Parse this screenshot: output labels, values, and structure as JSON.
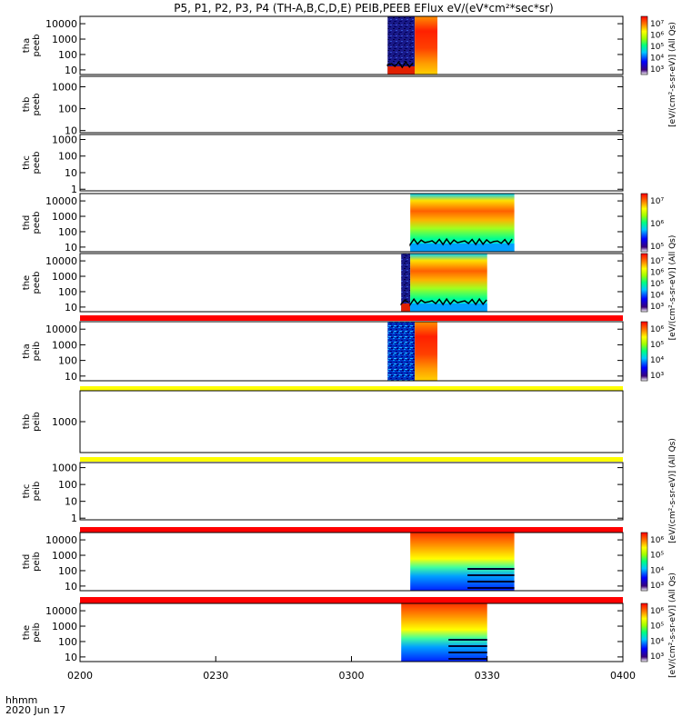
{
  "chart_data": {
    "type": "heatmap",
    "title": "P5, P1, P2, P3, P4 (TH-A,B,C,D,E) PEIB,PEEB EFlux eV/(eV*cm²*sec*sr)",
    "x_label_top": "hhmm",
    "x_label_bottom": "2020 Jun 17",
    "x_ticks": [
      "0200",
      "0230",
      "0300",
      "0330",
      "0400"
    ],
    "x_range_minutes": [
      0,
      120
    ],
    "panels": [
      {
        "id": "tha_peeb",
        "label": [
          "tha",
          "peeb"
        ],
        "yticks": [
          "10000",
          "1000",
          "100",
          "10"
        ],
        "ylim": [
          5,
          30000
        ],
        "blocks": [
          {
            "t0": 68,
            "t1": 74,
            "style": "dark"
          },
          {
            "t0": 74,
            "t1": 79,
            "style": "hot"
          }
        ],
        "colorbar": {
          "ticks": [
            "10⁷",
            "10⁶",
            "10⁵",
            "10⁴",
            "10³"
          ]
        }
      },
      {
        "id": "thb_peeb",
        "label": [
          "thb",
          "peeb"
        ],
        "yticks": [
          "1000",
          "100",
          "10"
        ],
        "ylim": [
          8,
          3000
        ],
        "blocks": []
      },
      {
        "id": "thc_peeb",
        "label": [
          "thc",
          "peeb"
        ],
        "yticks": [
          "1000",
          "100",
          "10",
          "1"
        ],
        "ylim": [
          0.8,
          2000
        ],
        "blocks": []
      },
      {
        "id": "thd_peeb",
        "label": [
          "thd",
          "peeb"
        ],
        "yticks": [
          "10000",
          "1000",
          "100",
          "10"
        ],
        "ylim": [
          5,
          30000
        ],
        "blocks": [
          {
            "t0": 73,
            "t1": 96,
            "style": "band"
          }
        ],
        "colorbar": {
          "ticks": [
            "10⁷",
            "10⁶",
            "10⁵"
          ]
        }
      },
      {
        "id": "the_peeb",
        "label": [
          "the",
          "peeb"
        ],
        "yticks": [
          "10000",
          "1000",
          "100",
          "10"
        ],
        "ylim": [
          5,
          30000
        ],
        "blocks": [
          {
            "t0": 71,
            "t1": 73,
            "style": "dark"
          },
          {
            "t0": 73,
            "t1": 90,
            "style": "band"
          }
        ],
        "colorbar": {
          "ticks": [
            "10⁷",
            "10⁶",
            "10⁵",
            "10⁴",
            "10³"
          ]
        }
      },
      {
        "id": "tha_peib",
        "label": [
          "tha",
          "peib"
        ],
        "yticks": [
          "10000",
          "1000",
          "100",
          "10"
        ],
        "ylim": [
          5,
          30000
        ],
        "blocks": [
          {
            "t0": 68,
            "t1": 74,
            "style": "speckle"
          },
          {
            "t0": 74,
            "t1": 79,
            "style": "hot"
          }
        ],
        "colorbar": {
          "ticks": [
            "10⁶",
            "10⁵",
            "10⁴",
            "10³"
          ]
        }
      },
      {
        "id": "thb_peib",
        "label": [
          "thb",
          "peib"
        ],
        "yticks": [
          "1000"
        ],
        "ylim": [
          100,
          10000
        ],
        "blocks": []
      },
      {
        "id": "thc_peib",
        "label": [
          "thc",
          "peib"
        ],
        "yticks": [
          "1000",
          "100",
          "10",
          "1"
        ],
        "ylim": [
          0.8,
          2000
        ],
        "blocks": []
      },
      {
        "id": "thd_peib",
        "label": [
          "thd",
          "peib"
        ],
        "yticks": [
          "10000",
          "1000",
          "100",
          "10"
        ],
        "ylim": [
          5,
          30000
        ],
        "blocks": [
          {
            "t0": 73,
            "t1": 96,
            "style": "ionband"
          }
        ],
        "colorbar": {
          "ticks": [
            "10⁶",
            "10⁵",
            "10⁴",
            "10³"
          ]
        }
      },
      {
        "id": "the_peib",
        "label": [
          "the",
          "peib"
        ],
        "yticks": [
          "10000",
          "1000",
          "100",
          "10"
        ],
        "ylim": [
          5,
          30000
        ],
        "blocks": [
          {
            "t0": 71,
            "t1": 90,
            "style": "ionband"
          }
        ],
        "colorbar": {
          "ticks": [
            "10⁶",
            "10⁵",
            "10⁴",
            "10³"
          ]
        }
      }
    ],
    "colorbar_side_labels": [
      "[eV/(cm²-s-sr-eV)] (All Qs)",
      "[eV/(cm²-s-sr-eV)] (All Qs)",
      "[eV/(cm²-s-sr-eV)] (All Qs)",
      "[eV/(cm²-s-sr-eV)] (All Qs)"
    ]
  }
}
